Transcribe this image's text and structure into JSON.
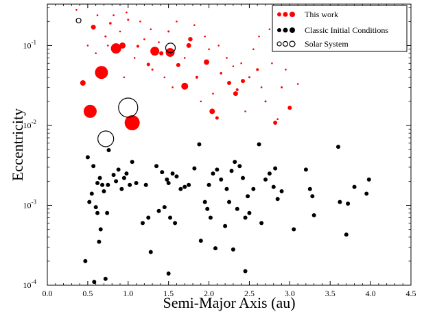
{
  "chart_data": {
    "type": "scatter",
    "xlabel": "Semi-Major Axis (au)",
    "ylabel": "Eccentricity",
    "xlim": [
      0.0,
      4.5
    ],
    "ylim": [
      0.0001,
      0.33
    ],
    "yscale": "log",
    "grid": false,
    "legend_position": "top-right",
    "x_ticks": [
      "0.0",
      "0.5",
      "1.0",
      "1.5",
      "2.0",
      "2.5",
      "3.0",
      "3.5",
      "4.0",
      "4.5"
    ],
    "y_ticks": [
      {
        "value": 0.0001,
        "base": "10",
        "exp": "-4"
      },
      {
        "value": 0.001,
        "base": "10",
        "exp": "-3"
      },
      {
        "value": 0.01,
        "base": "10",
        "exp": "-2"
      },
      {
        "value": 0.1,
        "base": "10",
        "exp": "-1"
      }
    ],
    "series": [
      {
        "name": "This work",
        "color": "#ff0000",
        "style": "filled",
        "points": [
          {
            "x": 0.67,
            "y": 0.046,
            "s": 9.5
          },
          {
            "x": 0.53,
            "y": 0.015,
            "s": 9.5
          },
          {
            "x": 1.05,
            "y": 0.0108,
            "s": 11
          },
          {
            "x": 0.85,
            "y": 0.092,
            "s": 7.5
          },
          {
            "x": 1.33,
            "y": 0.085,
            "s": 6.5
          },
          {
            "x": 1.52,
            "y": 0.082,
            "s": 6.5
          },
          {
            "x": 1.7,
            "y": 0.031,
            "s": 5
          },
          {
            "x": 0.93,
            "y": 0.1,
            "s": 4.5
          },
          {
            "x": 0.44,
            "y": 0.034,
            "s": 4
          },
          {
            "x": 0.57,
            "y": 0.17,
            "s": 3.5
          },
          {
            "x": 1.77,
            "y": 0.12,
            "s": 3.2
          },
          {
            "x": 1.75,
            "y": 0.1,
            "s": 3.5
          },
          {
            "x": 1.97,
            "y": 0.062,
            "s": 4
          },
          {
            "x": 2.04,
            "y": 0.015,
            "s": 4
          },
          {
            "x": 2.33,
            "y": 0.025,
            "s": 3.5
          },
          {
            "x": 2.25,
            "y": 0.034,
            "s": 3
          },
          {
            "x": 2.42,
            "y": 0.036,
            "s": 3
          },
          {
            "x": 3.0,
            "y": 0.0166,
            "s": 3
          },
          {
            "x": 2.82,
            "y": 0.0108,
            "s": 3
          },
          {
            "x": 1.41,
            "y": 0.08,
            "s": 3
          },
          {
            "x": 1.62,
            "y": 0.057,
            "s": 3
          },
          {
            "x": 2.1,
            "y": 0.0124,
            "s": 2.5
          },
          {
            "x": 1.25,
            "y": 0.058,
            "s": 2.5
          },
          {
            "x": 1.12,
            "y": 0.098,
            "s": 2
          },
          {
            "x": 2.35,
            "y": 0.028,
            "s": 2
          },
          {
            "x": 2.6,
            "y": 0.05,
            "s": 2
          },
          {
            "x": 1.85,
            "y": 0.04,
            "s": 2
          },
          {
            "x": 2.15,
            "y": 0.045,
            "s": 1.8
          },
          {
            "x": 0.78,
            "y": 0.19,
            "s": 1.8
          },
          {
            "x": 1.0,
            "y": 0.21,
            "s": 1.5
          },
          {
            "x": 1.5,
            "y": 0.15,
            "s": 1.5
          },
          {
            "x": 1.3,
            "y": 0.05,
            "s": 1.5
          },
          {
            "x": 2.5,
            "y": 0.04,
            "s": 1.5
          },
          {
            "x": 0.72,
            "y": 0.13,
            "s": 1.5
          },
          {
            "x": 2.7,
            "y": 0.02,
            "s": 1.5
          },
          {
            "x": 2.9,
            "y": 0.03,
            "s": 1.5
          },
          {
            "x": 2.0,
            "y": 0.09,
            "s": 1.3
          },
          {
            "x": 1.9,
            "y": 0.02,
            "s": 1.3
          },
          {
            "x": 0.36,
            "y": 0.28,
            "s": 1.3
          },
          {
            "x": 0.62,
            "y": 0.24,
            "s": 1.3
          },
          {
            "x": 0.82,
            "y": 0.24,
            "s": 1.3
          },
          {
            "x": 0.98,
            "y": 0.26,
            "s": 1.3
          },
          {
            "x": 0.75,
            "y": 0.1,
            "s": 1.3
          },
          {
            "x": 1.15,
            "y": 0.2,
            "s": 1.3
          },
          {
            "x": 1.38,
            "y": 0.11,
            "s": 1.3
          },
          {
            "x": 1.6,
            "y": 0.2,
            "s": 1.3
          },
          {
            "x": 1.82,
            "y": 0.18,
            "s": 1.3
          },
          {
            "x": 2.22,
            "y": 0.07,
            "s": 1.3
          },
          {
            "x": 2.4,
            "y": 0.06,
            "s": 1.3
          },
          {
            "x": 2.55,
            "y": 0.09,
            "s": 1.3
          },
          {
            "x": 2.78,
            "y": 0.06,
            "s": 1.3
          },
          {
            "x": 2.95,
            "y": 0.05,
            "s": 1.3
          },
          {
            "x": 3.1,
            "y": 0.033,
            "s": 1.3
          },
          {
            "x": 2.65,
            "y": 0.03,
            "s": 1.3
          },
          {
            "x": 2.05,
            "y": 0.025,
            "s": 1.3
          },
          {
            "x": 1.45,
            "y": 0.04,
            "s": 1.3
          },
          {
            "x": 1.08,
            "y": 0.07,
            "s": 1.3
          },
          {
            "x": 0.9,
            "y": 0.15,
            "s": 1.3
          },
          {
            "x": 0.5,
            "y": 0.1,
            "s": 1.3
          },
          {
            "x": 0.6,
            "y": 0.08,
            "s": 1.3
          },
          {
            "x": 1.2,
            "y": 0.12,
            "s": 1.3
          },
          {
            "x": 1.7,
            "y": 0.07,
            "s": 1.3
          },
          {
            "x": 2.3,
            "y": 0.055,
            "s": 1.3
          },
          {
            "x": 2.45,
            "y": 0.015,
            "s": 1.3
          },
          {
            "x": 2.85,
            "y": 0.012,
            "s": 1.3
          },
          {
            "x": 1.95,
            "y": 0.13,
            "s": 1.3
          },
          {
            "x": 2.12,
            "y": 0.1,
            "s": 1.3
          },
          {
            "x": 2.62,
            "y": 0.13,
            "s": 1.3
          },
          {
            "x": 2.75,
            "y": 0.16,
            "s": 1.3
          },
          {
            "x": 0.95,
            "y": 0.04,
            "s": 1.3
          },
          {
            "x": 1.55,
            "y": 0.03,
            "s": 1.3
          },
          {
            "x": 1.28,
            "y": 0.16,
            "s": 1.3
          }
        ]
      },
      {
        "name": "Classic Initial Conditions",
        "color": "#000000",
        "style": "filled",
        "points": [
          {
            "x": 0.47,
            "y": 0.0002
          },
          {
            "x": 0.52,
            "y": 0.0011
          },
          {
            "x": 0.55,
            "y": 0.0014
          },
          {
            "x": 0.57,
            "y": 0.0031
          },
          {
            "x": 0.6,
            "y": 0.00095
          },
          {
            "x": 0.62,
            "y": 0.0008
          },
          {
            "x": 0.65,
            "y": 0.0022
          },
          {
            "x": 0.66,
            "y": 0.0005
          },
          {
            "x": 0.68,
            "y": 0.0018
          },
          {
            "x": 0.7,
            "y": 0.0015
          },
          {
            "x": 0.5,
            "y": 0.004
          },
          {
            "x": 0.64,
            "y": 0.00035
          },
          {
            "x": 0.74,
            "y": 0.0008
          },
          {
            "x": 0.76,
            "y": 0.0049
          },
          {
            "x": 0.82,
            "y": 0.0024
          },
          {
            "x": 0.85,
            "y": 0.002
          },
          {
            "x": 0.88,
            "y": 0.0028
          },
          {
            "x": 0.92,
            "y": 0.0016
          },
          {
            "x": 0.95,
            "y": 0.0022
          },
          {
            "x": 0.98,
            "y": 0.0025
          },
          {
            "x": 1.02,
            "y": 0.0018
          },
          {
            "x": 1.05,
            "y": 0.0035
          },
          {
            "x": 1.1,
            "y": 0.0019
          },
          {
            "x": 1.18,
            "y": 0.0006
          },
          {
            "x": 1.22,
            "y": 0.0018
          },
          {
            "x": 1.25,
            "y": 0.0007
          },
          {
            "x": 1.28,
            "y": 0.00026
          },
          {
            "x": 1.35,
            "y": 0.0031
          },
          {
            "x": 1.38,
            "y": 0.00085
          },
          {
            "x": 1.42,
            "y": 0.0026
          },
          {
            "x": 1.45,
            "y": 0.00095
          },
          {
            "x": 1.48,
            "y": 0.0021
          },
          {
            "x": 1.5,
            "y": 0.0019
          },
          {
            "x": 1.52,
            "y": 0.0007
          },
          {
            "x": 1.55,
            "y": 0.0025
          },
          {
            "x": 1.58,
            "y": 0.0006
          },
          {
            "x": 1.65,
            "y": 0.0016
          },
          {
            "x": 1.7,
            "y": 0.0017
          },
          {
            "x": 1.75,
            "y": 0.0018
          },
          {
            "x": 1.82,
            "y": 0.0029
          },
          {
            "x": 1.88,
            "y": 0.0058
          },
          {
            "x": 1.9,
            "y": 0.00036
          },
          {
            "x": 1.95,
            "y": 0.0011
          },
          {
            "x": 1.98,
            "y": 0.0009
          },
          {
            "x": 2.0,
            "y": 0.0018
          },
          {
            "x": 2.02,
            "y": 0.0007
          },
          {
            "x": 2.05,
            "y": 0.0025
          },
          {
            "x": 2.08,
            "y": 0.00029
          },
          {
            "x": 2.1,
            "y": 0.0028
          },
          {
            "x": 2.15,
            "y": 0.0021
          },
          {
            "x": 2.2,
            "y": 0.00055
          },
          {
            "x": 2.22,
            "y": 0.0016
          },
          {
            "x": 2.25,
            "y": 0.0011
          },
          {
            "x": 2.28,
            "y": 0.0027
          },
          {
            "x": 2.3,
            "y": 0.00028
          },
          {
            "x": 2.32,
            "y": 0.0035
          },
          {
            "x": 2.35,
            "y": 0.0009
          },
          {
            "x": 2.38,
            "y": 0.0031
          },
          {
            "x": 2.42,
            "y": 0.0022
          },
          {
            "x": 2.45,
            "y": 0.0007
          },
          {
            "x": 2.48,
            "y": 0.0013
          },
          {
            "x": 2.5,
            "y": 0.0008
          },
          {
            "x": 2.55,
            "y": 0.0016
          },
          {
            "x": 2.62,
            "y": 0.0058
          },
          {
            "x": 2.65,
            "y": 0.0006
          },
          {
            "x": 2.7,
            "y": 0.0021
          },
          {
            "x": 2.75,
            "y": 0.0025
          },
          {
            "x": 2.8,
            "y": 0.0017
          },
          {
            "x": 2.82,
            "y": 0.0029
          },
          {
            "x": 2.85,
            "y": 0.0012
          },
          {
            "x": 2.9,
            "y": 0.0015
          },
          {
            "x": 3.05,
            "y": 0.0005
          },
          {
            "x": 3.2,
            "y": 0.0028
          },
          {
            "x": 3.25,
            "y": 0.0016
          },
          {
            "x": 3.28,
            "y": 0.0013
          },
          {
            "x": 3.3,
            "y": 0.00075
          },
          {
            "x": 3.6,
            "y": 0.0054
          },
          {
            "x": 3.62,
            "y": 0.0011
          },
          {
            "x": 3.7,
            "y": 0.00043
          },
          {
            "x": 3.72,
            "y": 0.00105
          },
          {
            "x": 3.8,
            "y": 0.0017
          },
          {
            "x": 3.95,
            "y": 0.0014
          },
          {
            "x": 3.98,
            "y": 0.0021
          },
          {
            "x": 0.58,
            "y": 0.00011
          },
          {
            "x": 0.72,
            "y": 0.00012
          },
          {
            "x": 1.5,
            "y": 0.00014
          },
          {
            "x": 2.45,
            "y": 0.00015
          },
          {
            "x": 0.75,
            "y": 0.0018
          },
          {
            "x": 1.6,
            "y": 0.0023
          },
          {
            "x": 0.62,
            "y": 0.0019
          }
        ]
      },
      {
        "name": "Solar System",
        "color": "#000000",
        "style": "hollow",
        "points": [
          {
            "x": 0.387,
            "y": 0.2056,
            "s": 3.5
          },
          {
            "x": 0.723,
            "y": 0.0068,
            "s": 11.5
          },
          {
            "x": 1.0,
            "y": 0.0167,
            "s": 14
          },
          {
            "x": 1.524,
            "y": 0.0934,
            "s": 7
          }
        ]
      }
    ]
  }
}
